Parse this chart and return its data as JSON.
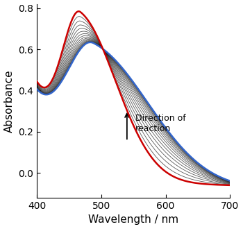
{
  "xlabel": "Wavelength / nm",
  "ylabel": "Absorbance",
  "xlim": [
    400,
    700
  ],
  "ylim": [
    -0.12,
    0.82
  ],
  "yticks": [
    0.0,
    0.2,
    0.4,
    0.6,
    0.8
  ],
  "xticks": [
    400,
    500,
    600,
    700
  ],
  "n_black_lines": 20,
  "background_color": "#ffffff",
  "black_line_color": "#111111",
  "red_line_color": "#cc0000",
  "blue_line_color": "#3366cc",
  "figsize": [
    3.5,
    3.3
  ],
  "dpi": 100
}
